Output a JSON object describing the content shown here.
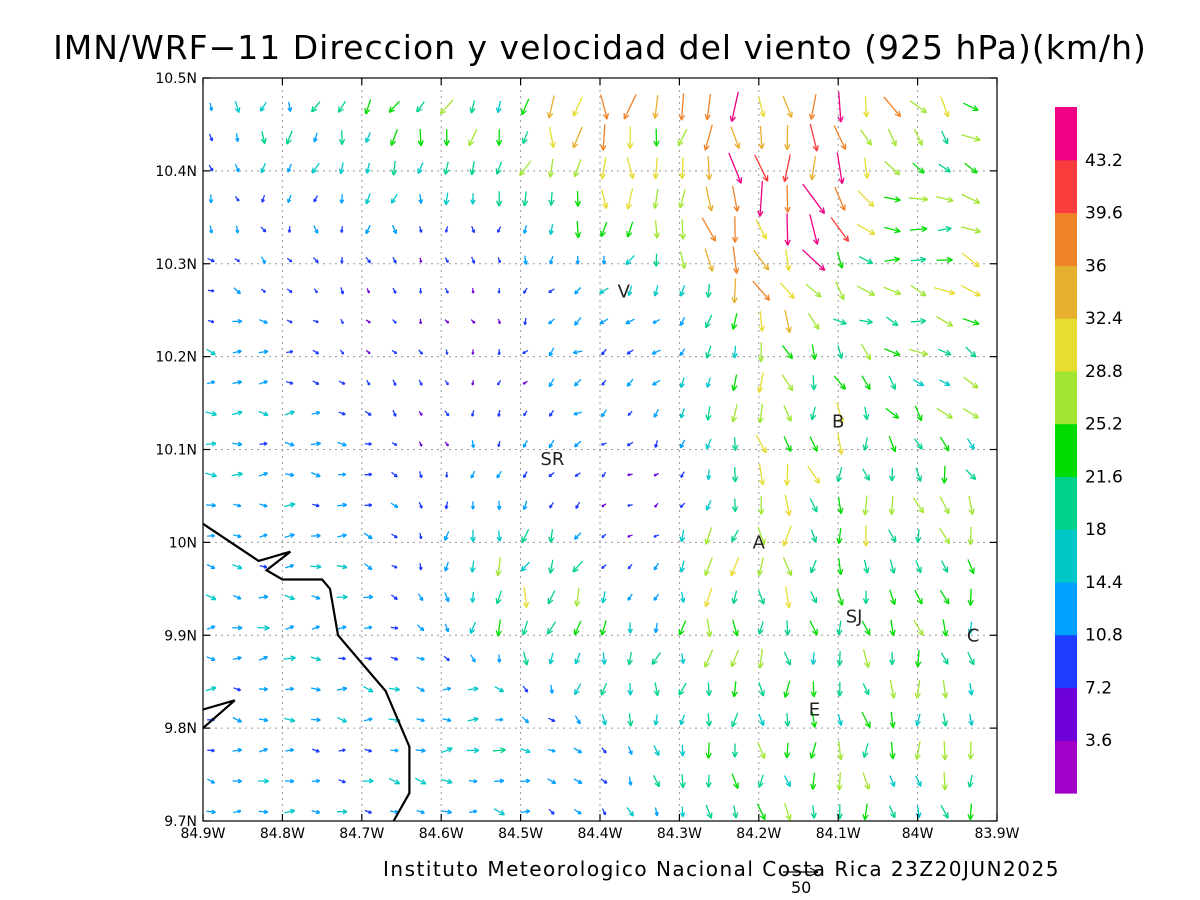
{
  "title": "IMN/WRF−11 Direccion y velocidad del viento (925 hPa)(km/h)",
  "footer": "Instituto Meteorologico Nacional Costa Rica 23Z20JUN2025",
  "reference_vector_value": "50",
  "map": {
    "lon_range": [
      -84.9,
      -83.9
    ],
    "lat_range": [
      9.7,
      10.5
    ],
    "x_ticks": [
      "84.9W",
      "84.8W",
      "84.7W",
      "84.6W",
      "84.5W",
      "84.4W",
      "84.3W",
      "84.2W",
      "84.1W",
      "84W",
      "83.9W"
    ],
    "y_ticks": [
      "10.5N",
      "10.4N",
      "10.3N",
      "10.2N",
      "10.1N",
      "10N",
      "9.9N",
      "9.8N",
      "9.7N"
    ],
    "grid": "dotted",
    "places": [
      {
        "label": "V",
        "lon": -84.37,
        "lat": 10.27
      },
      {
        "label": "SR",
        "lon": -84.46,
        "lat": 10.09
      },
      {
        "label": "B",
        "lon": -84.1,
        "lat": 10.13
      },
      {
        "label": "A",
        "lon": -84.2,
        "lat": 10.0
      },
      {
        "label": "SJ",
        "lon": -84.08,
        "lat": 9.92
      },
      {
        "label": "C",
        "lon": -83.93,
        "lat": 9.9
      },
      {
        "label": "E",
        "lon": -84.13,
        "lat": 9.82
      }
    ],
    "coastline": [
      [
        -84.9,
        10.02
      ],
      [
        -84.83,
        9.98
      ],
      [
        -84.79,
        9.99
      ],
      [
        -84.82,
        9.97
      ],
      [
        -84.8,
        9.96
      ],
      [
        -84.75,
        9.96
      ],
      [
        -84.74,
        9.95
      ],
      [
        -84.73,
        9.9
      ],
      [
        -84.72,
        9.89
      ],
      [
        -84.67,
        9.84
      ],
      [
        -84.64,
        9.78
      ],
      [
        -84.64,
        9.73
      ],
      [
        -84.66,
        9.7
      ]
    ],
    "coastline_inlet": [
      [
        -84.9,
        9.82
      ],
      [
        -84.86,
        9.83
      ],
      [
        -84.9,
        9.8
      ]
    ]
  },
  "colorbar": {
    "colors": [
      "#a000c8",
      "#6e00dc",
      "#1e3cff",
      "#00a0ff",
      "#00c8c8",
      "#00d28c",
      "#00dc00",
      "#a0e632",
      "#e6dc32",
      "#e6af2d",
      "#f08228",
      "#fa3c3c",
      "#f00082"
    ],
    "labels": [
      "3.6",
      "7.2",
      "10.8",
      "14.4",
      "18",
      "21.6",
      "25.2",
      "28.8",
      "32.4",
      "36",
      "39.6",
      "43.2"
    ]
  },
  "wind_field": {
    "units": "km/h",
    "regimes": [
      {
        "lon": -84.2,
        "lat": 10.43,
        "speed": 40,
        "dir_deg": 180
      },
      {
        "lon": -84.15,
        "lat": 10.37,
        "speed": 44,
        "dir_deg": 160
      },
      {
        "lon": -84.35,
        "lat": 10.45,
        "speed": 33,
        "dir_deg": 185
      },
      {
        "lon": -84.6,
        "lat": 10.45,
        "speed": 22,
        "dir_deg": 200
      },
      {
        "lon": -84.02,
        "lat": 10.3,
        "speed": 26,
        "dir_deg": 100
      },
      {
        "lon": -84.15,
        "lat": 10.08,
        "speed": 26,
        "dir_deg": 170
      },
      {
        "lon": -84.25,
        "lat": 9.98,
        "speed": 27,
        "dir_deg": 185
      },
      {
        "lon": -84.48,
        "lat": 9.92,
        "speed": 26,
        "dir_deg": 200
      },
      {
        "lon": -84.05,
        "lat": 9.78,
        "speed": 22,
        "dir_deg": 175
      },
      {
        "lon": -84.8,
        "lat": 9.9,
        "speed": 14,
        "dir_deg": 90
      },
      {
        "lon": -84.8,
        "lat": 10.1,
        "speed": 14,
        "dir_deg": 95
      },
      {
        "lon": -84.55,
        "lat": 9.8,
        "speed": 16,
        "dir_deg": 90
      },
      {
        "lon": -84.4,
        "lat": 10.2,
        "speed": 12,
        "dir_deg": 240
      },
      {
        "lon": -84.6,
        "lat": 10.25,
        "speed": 7,
        "dir_deg": 150
      },
      {
        "lon": -84.35,
        "lat": 10.02,
        "speed": 6,
        "dir_deg": 270
      }
    ]
  }
}
